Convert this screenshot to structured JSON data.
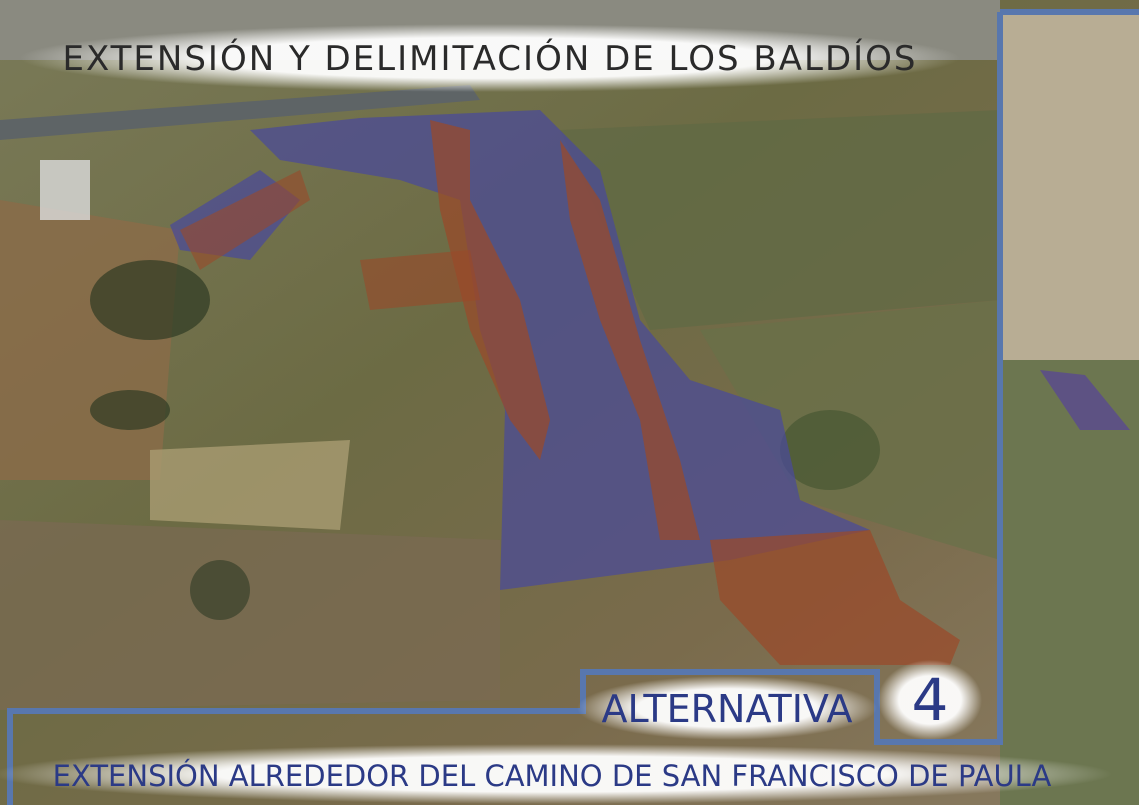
{
  "header": {
    "title": "EXTENSIÓN Y DELIMITACIÓN DE LOS BALDÍOS"
  },
  "label": {
    "text": "ALTERNATIVA",
    "number": "4"
  },
  "footer": {
    "subtitle": "EXTENSIÓN ALREDEDOR DEL CAMINO DE SAN FRANCISCO DE PAULA"
  }
}
